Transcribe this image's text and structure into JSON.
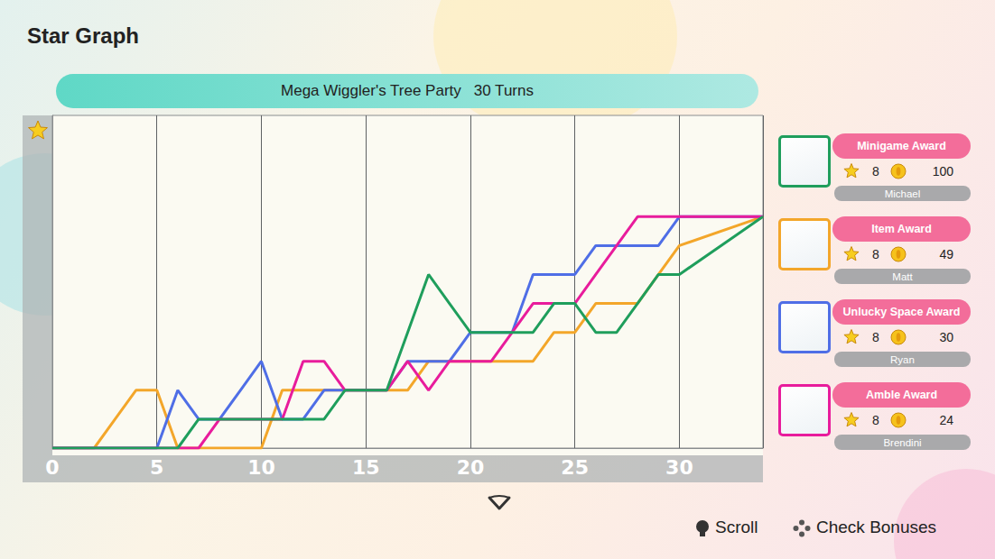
{
  "header": {
    "title": "Star Graph",
    "board": "Mega Wiggler's Tree Party",
    "turns": "30 Turns"
  },
  "chart_data": {
    "type": "line",
    "x": [
      0,
      1,
      2,
      3,
      4,
      5,
      6,
      7,
      8,
      9,
      10,
      11,
      12,
      13,
      14,
      15,
      16,
      17,
      18,
      19,
      20,
      21,
      22,
      23,
      24,
      25,
      26,
      27,
      28,
      29,
      30,
      34
    ],
    "series": [
      {
        "name": "Matt",
        "color": "#f3a62a",
        "values": [
          0,
          0,
          0,
          1,
          2,
          2,
          0,
          0,
          0,
          0,
          0,
          2,
          2,
          2,
          2,
          2,
          2,
          2,
          3,
          3,
          3,
          3,
          3,
          3,
          4,
          4,
          5,
          5,
          5,
          6,
          7,
          8
        ]
      },
      {
        "name": "Ryan",
        "color": "#4f6ee6",
        "values": [
          0,
          0,
          0,
          0,
          0,
          0,
          2,
          1,
          1,
          2,
          3,
          1,
          1,
          2,
          2,
          2,
          2,
          3,
          3,
          3,
          4,
          4,
          4,
          6,
          6,
          6,
          7,
          7,
          7,
          7,
          8,
          8
        ]
      },
      {
        "name": "Brendini",
        "color": "#e81c9c",
        "values": [
          0,
          0,
          0,
          0,
          0,
          0,
          0,
          0,
          1,
          1,
          1,
          1,
          3,
          3,
          2,
          2,
          2,
          3,
          2,
          3,
          3,
          3,
          4,
          5,
          5,
          5,
          6,
          7,
          8,
          8,
          8,
          8
        ]
      },
      {
        "name": "Michael",
        "color": "#1f9e5c",
        "values": [
          0,
          0,
          0,
          0,
          0,
          0,
          0,
          1,
          1,
          1,
          1,
          1,
          1,
          1,
          2,
          2,
          2,
          4,
          6,
          5,
          4,
          4,
          4,
          4,
          5,
          5,
          4,
          4,
          5,
          6,
          6,
          8
        ]
      }
    ],
    "xlim": [
      0,
      34
    ],
    "xticks": [
      0,
      5,
      10,
      15,
      20,
      25,
      30
    ],
    "ylim": [
      0,
      11.5
    ],
    "grid": true,
    "tick_labels": "x"
  },
  "players": [
    {
      "award": "Minigame Award",
      "stars": 8,
      "coins": 100,
      "name": "Michael",
      "color": "#1f9e5c"
    },
    {
      "award": "Item Award",
      "stars": 8,
      "coins": 49,
      "name": "Matt",
      "color": "#f3a62a"
    },
    {
      "award": "Unlucky Space Award",
      "stars": 8,
      "coins": 30,
      "name": "Ryan",
      "color": "#4f6ee6"
    },
    {
      "award": "Amble Award",
      "stars": 8,
      "coins": 24,
      "name": "Brendini",
      "color": "#e81c9c"
    }
  ],
  "footer": {
    "scroll": "Scroll",
    "check_bonuses": "Check Bonuses"
  }
}
